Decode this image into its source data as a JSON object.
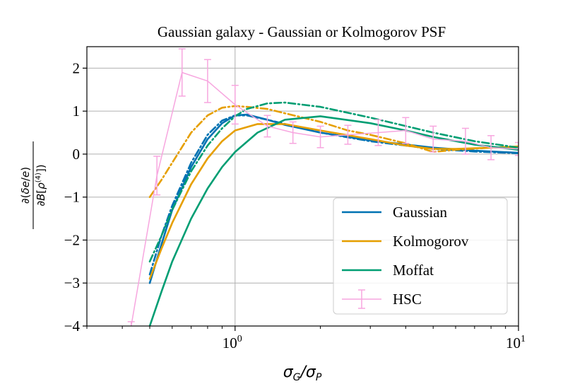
{
  "chart_data": {
    "type": "line",
    "title": "Gaussian galaxy - Gaussian or Kolmogorov PSF",
    "xlabel": "σ_G/σ_P",
    "ylabel": "∂(δe/e) / ∂B[ρ^(4)]",
    "xscale": "log",
    "xlim": [
      0.3,
      10
    ],
    "ylim": [
      -4,
      2.5
    ],
    "yticks": [
      2,
      1,
      0,
      -1,
      -2,
      -3,
      -4
    ],
    "ytick_labels": [
      "2",
      "1",
      "0",
      "−1",
      "−2",
      "−3",
      "−4"
    ],
    "xtick_labels": [
      {
        "value": 1,
        "base": "10",
        "exp": "0"
      },
      {
        "value": 10,
        "base": "10",
        "exp": "1"
      }
    ],
    "grid": true,
    "legend": "lower right",
    "series": [
      {
        "name": "Gaussian",
        "color": "#0072b2",
        "style": "solid",
        "x": [
          0.5,
          0.55,
          0.6,
          0.7,
          0.8,
          0.9,
          1.0,
          1.1,
          1.3,
          1.5,
          2,
          3,
          5,
          7,
          10
        ],
        "y": [
          -3.0,
          -2.1,
          -1.3,
          -0.3,
          0.35,
          0.72,
          0.9,
          0.92,
          0.8,
          0.68,
          0.5,
          0.32,
          0.15,
          0.08,
          0.03
        ]
      },
      {
        "name": "",
        "color": "#0072b2",
        "style": "dashdot",
        "x": [
          0.5,
          0.55,
          0.6,
          0.7,
          0.8,
          0.9,
          1.0,
          1.1,
          1.3,
          1.5,
          2,
          3,
          5,
          7,
          10
        ],
        "y": [
          -2.8,
          -1.9,
          -1.2,
          -0.2,
          0.45,
          0.78,
          0.9,
          0.9,
          0.8,
          0.7,
          0.5,
          0.3,
          0.12,
          0.06,
          0.02
        ]
      },
      {
        "name": "Kolmogorov",
        "color": "#e69f00",
        "style": "solid",
        "x": [
          0.5,
          0.55,
          0.6,
          0.7,
          0.8,
          0.9,
          1.0,
          1.2,
          1.5,
          2,
          3,
          4,
          5,
          6,
          8,
          10
        ],
        "y": [
          -2.9,
          -2.2,
          -1.6,
          -0.7,
          -0.1,
          0.3,
          0.55,
          0.7,
          0.7,
          0.55,
          0.35,
          0.2,
          0.12,
          0.12,
          0.15,
          0.18
        ]
      },
      {
        "name": "",
        "color": "#e69f00",
        "style": "dashdot",
        "x": [
          0.5,
          0.55,
          0.6,
          0.7,
          0.8,
          0.9,
          1.0,
          1.1,
          1.3,
          1.5,
          2,
          2.5,
          3,
          4,
          5,
          6,
          8,
          10
        ],
        "y": [
          -1.0,
          -0.6,
          -0.2,
          0.5,
          0.9,
          1.08,
          1.12,
          1.1,
          1.05,
          0.95,
          0.75,
          0.55,
          0.45,
          0.25,
          0.05,
          0.1,
          0.15,
          0.15
        ]
      },
      {
        "name": "Moffat",
        "color": "#009e73",
        "style": "solid",
        "x": [
          0.5,
          0.55,
          0.6,
          0.7,
          0.8,
          0.9,
          1.0,
          1.2,
          1.5,
          2,
          3,
          4,
          5,
          7,
          10
        ],
        "y": [
          -4.0,
          -3.2,
          -2.5,
          -1.5,
          -0.8,
          -0.3,
          0.05,
          0.5,
          0.8,
          0.88,
          0.72,
          0.55,
          0.4,
          0.22,
          0.1
        ]
      },
      {
        "name": "",
        "color": "#009e73",
        "style": "dashdot",
        "x": [
          0.5,
          0.55,
          0.6,
          0.7,
          0.8,
          0.9,
          1.0,
          1.1,
          1.3,
          1.5,
          2,
          3,
          5,
          7,
          10
        ],
        "y": [
          -2.5,
          -1.9,
          -1.3,
          -0.4,
          0.2,
          0.6,
          0.88,
          1.05,
          1.18,
          1.2,
          1.1,
          0.85,
          0.5,
          0.3,
          0.15
        ]
      },
      {
        "name": "HSC",
        "color": "#f7a6df",
        "style": "errorbar",
        "x": [
          0.43,
          0.53,
          0.65,
          0.8,
          1.0,
          1.3,
          1.6,
          2.0,
          2.5,
          3.2,
          4.0,
          5.0,
          6.5,
          8.0,
          10.0
        ],
        "y": [
          -4.0,
          -0.5,
          1.9,
          1.7,
          1.15,
          0.65,
          0.5,
          0.4,
          0.45,
          0.5,
          0.55,
          0.35,
          0.3,
          0.15,
          0.12
        ],
        "err": [
          0.1,
          0.45,
          0.55,
          0.5,
          0.45,
          0.25,
          0.25,
          0.25,
          0.22,
          0.3,
          0.3,
          0.3,
          0.3,
          0.28,
          0.15
        ]
      }
    ]
  }
}
